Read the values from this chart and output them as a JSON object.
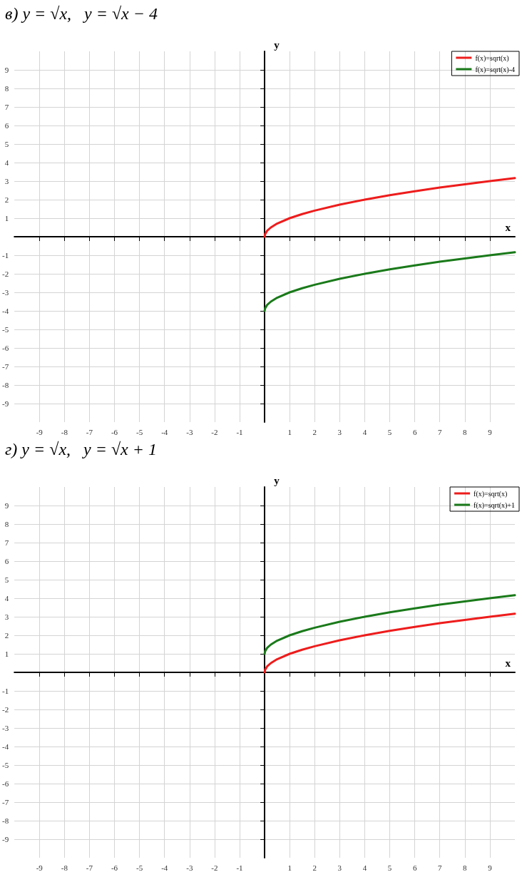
{
  "chart_data": [
    {
      "type": "line",
      "title": "в) y = √x,   y = √x − 4",
      "xlabel": "x",
      "ylabel": "y",
      "x": [
        0,
        0.02,
        0.1,
        0.25,
        0.5,
        1,
        1.5,
        2,
        3,
        4,
        5,
        6,
        7,
        8,
        9,
        10
      ],
      "series": [
        {
          "name": "f(x)=sqrt(x)",
          "color": "#ee1c1c",
          "values": [
            0,
            0.14,
            0.32,
            0.5,
            0.71,
            1,
            1.22,
            1.41,
            1.73,
            2,
            2.24,
            2.45,
            2.65,
            2.83,
            3,
            3.16
          ]
        },
        {
          "name": "f(x)=sqrt(x)-4",
          "color": "#1a7a1a",
          "values": [
            -4,
            -3.86,
            -3.68,
            -3.5,
            -3.29,
            -3,
            -2.78,
            -2.59,
            -2.27,
            -2,
            -1.76,
            -1.55,
            -1.35,
            -1.17,
            -1,
            -0.84
          ]
        }
      ],
      "xlim": [
        -10,
        10
      ],
      "ylim": [
        -10,
        10
      ],
      "xticks": [
        -9,
        -8,
        -7,
        -6,
        -5,
        -4,
        -3,
        -2,
        -1,
        1,
        2,
        3,
        4,
        5,
        6,
        7,
        8,
        9
      ],
      "yticks": [
        -9,
        -8,
        -7,
        -6,
        -5,
        -4,
        -3,
        -2,
        -1,
        1,
        2,
        3,
        4,
        5,
        6,
        7,
        8,
        9
      ],
      "grid": true,
      "legend": "top right"
    },
    {
      "type": "line",
      "title": "г) y = √x,   y = √x + 1",
      "xlabel": "x",
      "ylabel": "y",
      "x": [
        0,
        0.02,
        0.1,
        0.25,
        0.5,
        1,
        1.5,
        2,
        3,
        4,
        5,
        6,
        7,
        8,
        9,
        10
      ],
      "series": [
        {
          "name": "f(x)=sqrt(x)",
          "color": "#ee1c1c",
          "values": [
            0,
            0.14,
            0.32,
            0.5,
            0.71,
            1,
            1.22,
            1.41,
            1.73,
            2,
            2.24,
            2.45,
            2.65,
            2.83,
            3,
            3.16
          ]
        },
        {
          "name": "f(x)=sqrt(x)+1",
          "color": "#1a7a1a",
          "values": [
            1,
            1.14,
            1.32,
            1.5,
            1.71,
            2,
            2.22,
            2.41,
            2.73,
            3,
            3.24,
            3.45,
            3.65,
            3.83,
            4,
            4.16
          ]
        }
      ],
      "xlim": [
        -10,
        10
      ],
      "ylim": [
        -10,
        10
      ],
      "xticks": [
        -9,
        -8,
        -7,
        -6,
        -5,
        -4,
        -3,
        -2,
        -1,
        1,
        2,
        3,
        4,
        5,
        6,
        7,
        8,
        9
      ],
      "yticks": [
        -9,
        -8,
        -7,
        -6,
        -5,
        -4,
        -3,
        -2,
        -1,
        1,
        2,
        3,
        4,
        5,
        6,
        7,
        8,
        9
      ],
      "grid": true,
      "legend": "top right"
    }
  ]
}
